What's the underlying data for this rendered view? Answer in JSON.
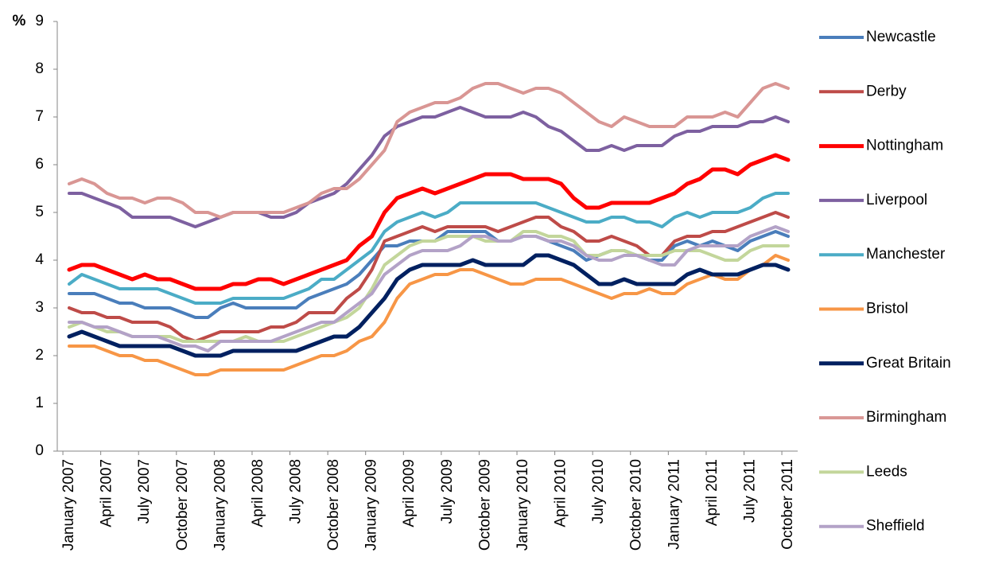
{
  "chart_data": {
    "type": "line",
    "y_label": "%",
    "categories": [
      "January 2007",
      null,
      null,
      "April 2007",
      null,
      null,
      "July 2007",
      null,
      null,
      "October 2007",
      null,
      null,
      "January 2008",
      null,
      null,
      "April 2008",
      null,
      null,
      "July 2008",
      null,
      null,
      "October 2008",
      null,
      null,
      "January 2009",
      null,
      null,
      "April 2009",
      null,
      null,
      "July 2009",
      null,
      null,
      "October 2009",
      null,
      null,
      "January 2010",
      null,
      null,
      "April 2010",
      null,
      null,
      "July 2010",
      null,
      null,
      "October 2010",
      null,
      null,
      "January 2011",
      null,
      null,
      "April 2011",
      null,
      null,
      "July 2011",
      null,
      null,
      "October 2011"
    ],
    "ylim": [
      0,
      9
    ],
    "yticks": [
      0,
      1,
      2,
      3,
      4,
      5,
      6,
      7,
      8,
      9
    ],
    "grid": false,
    "legend": "right",
    "series": [
      {
        "name": "Newcastle",
        "color": "#4a7ebb",
        "values": [
          3.3,
          3.3,
          3.3,
          3.2,
          3.1,
          3.1,
          3.0,
          3.0,
          3.0,
          2.9,
          2.8,
          2.8,
          3.0,
          3.1,
          3.0,
          3.0,
          3.0,
          3.0,
          3.0,
          3.2,
          3.3,
          3.4,
          3.5,
          3.7,
          4.0,
          4.3,
          4.3,
          4.4,
          4.4,
          4.4,
          4.6,
          4.6,
          4.6,
          4.6,
          4.4,
          4.4,
          4.5,
          4.5,
          4.4,
          4.3,
          4.2,
          4.0,
          4.1,
          4.2,
          4.2,
          4.1,
          4.0,
          4.0,
          4.3,
          4.4,
          4.3,
          4.4,
          4.3,
          4.2,
          4.4,
          4.5,
          4.6,
          4.5
        ]
      },
      {
        "name": "Derby",
        "color": "#be4b48",
        "values": [
          3.0,
          2.9,
          2.9,
          2.8,
          2.8,
          2.7,
          2.7,
          2.7,
          2.6,
          2.4,
          2.3,
          2.4,
          2.5,
          2.5,
          2.5,
          2.5,
          2.6,
          2.6,
          2.7,
          2.9,
          2.9,
          2.9,
          3.2,
          3.4,
          3.8,
          4.4,
          4.5,
          4.6,
          4.7,
          4.6,
          4.7,
          4.7,
          4.7,
          4.7,
          4.6,
          4.7,
          4.8,
          4.9,
          4.9,
          4.7,
          4.6,
          4.4,
          4.4,
          4.5,
          4.4,
          4.3,
          4.1,
          4.1,
          4.4,
          4.5,
          4.5,
          4.6,
          4.6,
          4.7,
          4.8,
          4.9,
          5.0,
          4.9
        ]
      },
      {
        "name": "Nottingham",
        "color": "#ff0000",
        "values": [
          3.8,
          3.9,
          3.9,
          3.8,
          3.7,
          3.6,
          3.7,
          3.6,
          3.6,
          3.5,
          3.4,
          3.4,
          3.4,
          3.5,
          3.5,
          3.6,
          3.6,
          3.5,
          3.6,
          3.7,
          3.8,
          3.9,
          4.0,
          4.3,
          4.5,
          5.0,
          5.3,
          5.4,
          5.5,
          5.4,
          5.5,
          5.6,
          5.7,
          5.8,
          5.8,
          5.8,
          5.7,
          5.7,
          5.7,
          5.6,
          5.3,
          5.1,
          5.1,
          5.2,
          5.2,
          5.2,
          5.2,
          5.3,
          5.4,
          5.6,
          5.7,
          5.9,
          5.9,
          5.8,
          6.0,
          6.1,
          6.2,
          6.1
        ]
      },
      {
        "name": "Liverpool",
        "color": "#7d60a0",
        "values": [
          5.4,
          5.4,
          5.3,
          5.2,
          5.1,
          4.9,
          4.9,
          4.9,
          4.9,
          4.8,
          4.7,
          4.8,
          4.9,
          5.0,
          5.0,
          5.0,
          4.9,
          4.9,
          5.0,
          5.2,
          5.3,
          5.4,
          5.6,
          5.9,
          6.2,
          6.6,
          6.8,
          6.9,
          7.0,
          7.0,
          7.1,
          7.2,
          7.1,
          7.0,
          7.0,
          7.0,
          7.1,
          7.0,
          6.8,
          6.7,
          6.5,
          6.3,
          6.3,
          6.4,
          6.3,
          6.4,
          6.4,
          6.4,
          6.6,
          6.7,
          6.7,
          6.8,
          6.8,
          6.8,
          6.9,
          6.9,
          7.0,
          6.9
        ]
      },
      {
        "name": "Manchester",
        "color": "#4bacc6",
        "values": [
          3.5,
          3.7,
          3.6,
          3.5,
          3.4,
          3.4,
          3.4,
          3.4,
          3.3,
          3.2,
          3.1,
          3.1,
          3.1,
          3.2,
          3.2,
          3.2,
          3.2,
          3.2,
          3.3,
          3.4,
          3.6,
          3.6,
          3.8,
          4.0,
          4.2,
          4.6,
          4.8,
          4.9,
          5.0,
          4.9,
          5.0,
          5.2,
          5.2,
          5.2,
          5.2,
          5.2,
          5.2,
          5.2,
          5.1,
          5.0,
          4.9,
          4.8,
          4.8,
          4.9,
          4.9,
          4.8,
          4.8,
          4.7,
          4.9,
          5.0,
          4.9,
          5.0,
          5.0,
          5.0,
          5.1,
          5.3,
          5.4,
          5.4
        ]
      },
      {
        "name": "Bristol",
        "color": "#f79646",
        "values": [
          2.2,
          2.2,
          2.2,
          2.1,
          2.0,
          2.0,
          1.9,
          1.9,
          1.8,
          1.7,
          1.6,
          1.6,
          1.7,
          1.7,
          1.7,
          1.7,
          1.7,
          1.7,
          1.8,
          1.9,
          2.0,
          2.0,
          2.1,
          2.3,
          2.4,
          2.7,
          3.2,
          3.5,
          3.6,
          3.7,
          3.7,
          3.8,
          3.8,
          3.7,
          3.6,
          3.5,
          3.5,
          3.6,
          3.6,
          3.6,
          3.5,
          3.4,
          3.3,
          3.2,
          3.3,
          3.3,
          3.4,
          3.3,
          3.3,
          3.5,
          3.6,
          3.7,
          3.6,
          3.6,
          3.8,
          3.9,
          4.1,
          4.0
        ]
      },
      {
        "name": "Great Britain",
        "color": "#002060",
        "values": [
          2.4,
          2.5,
          2.4,
          2.3,
          2.2,
          2.2,
          2.2,
          2.2,
          2.2,
          2.1,
          2.0,
          2.0,
          2.0,
          2.1,
          2.1,
          2.1,
          2.1,
          2.1,
          2.1,
          2.2,
          2.3,
          2.4,
          2.4,
          2.6,
          2.9,
          3.2,
          3.6,
          3.8,
          3.9,
          3.9,
          3.9,
          3.9,
          4.0,
          3.9,
          3.9,
          3.9,
          3.9,
          4.1,
          4.1,
          4.0,
          3.9,
          3.7,
          3.5,
          3.5,
          3.6,
          3.5,
          3.5,
          3.5,
          3.5,
          3.7,
          3.8,
          3.7,
          3.7,
          3.7,
          3.8,
          3.9,
          3.9,
          3.8
        ]
      },
      {
        "name": "Birmingham",
        "color": "#d99694",
        "values": [
          5.6,
          5.7,
          5.6,
          5.4,
          5.3,
          5.3,
          5.2,
          5.3,
          5.3,
          5.2,
          5.0,
          5.0,
          4.9,
          5.0,
          5.0,
          5.0,
          5.0,
          5.0,
          5.1,
          5.2,
          5.4,
          5.5,
          5.5,
          5.7,
          6.0,
          6.3,
          6.9,
          7.1,
          7.2,
          7.3,
          7.3,
          7.4,
          7.6,
          7.7,
          7.7,
          7.6,
          7.5,
          7.6,
          7.6,
          7.5,
          7.3,
          7.1,
          6.9,
          6.8,
          7.0,
          6.9,
          6.8,
          6.8,
          6.8,
          7.0,
          7.0,
          7.0,
          7.1,
          7.0,
          7.3,
          7.6,
          7.7,
          7.6
        ]
      },
      {
        "name": "Leeds",
        "color": "#c3d69b",
        "values": [
          2.6,
          2.7,
          2.6,
          2.5,
          2.5,
          2.4,
          2.4,
          2.4,
          2.4,
          2.3,
          2.3,
          2.3,
          2.3,
          2.3,
          2.4,
          2.3,
          2.3,
          2.3,
          2.4,
          2.5,
          2.6,
          2.7,
          2.8,
          3.0,
          3.4,
          3.9,
          4.1,
          4.3,
          4.4,
          4.4,
          4.5,
          4.5,
          4.5,
          4.4,
          4.4,
          4.4,
          4.6,
          4.6,
          4.5,
          4.5,
          4.4,
          4.1,
          4.1,
          4.2,
          4.2,
          4.1,
          4.1,
          4.1,
          4.2,
          4.2,
          4.2,
          4.1,
          4.0,
          4.0,
          4.2,
          4.3,
          4.3,
          4.3
        ]
      },
      {
        "name": "Sheffield",
        "color": "#b3a2c7",
        "values": [
          2.7,
          2.7,
          2.6,
          2.6,
          2.5,
          2.4,
          2.4,
          2.4,
          2.3,
          2.2,
          2.2,
          2.1,
          2.3,
          2.3,
          2.3,
          2.3,
          2.3,
          2.4,
          2.5,
          2.6,
          2.7,
          2.7,
          2.9,
          3.1,
          3.3,
          3.7,
          3.9,
          4.1,
          4.2,
          4.2,
          4.2,
          4.3,
          4.5,
          4.5,
          4.4,
          4.4,
          4.5,
          4.5,
          4.4,
          4.4,
          4.3,
          4.1,
          4.0,
          4.0,
          4.1,
          4.1,
          4.0,
          3.9,
          3.9,
          4.2,
          4.3,
          4.3,
          4.3,
          4.3,
          4.5,
          4.6,
          4.7,
          4.6
        ]
      }
    ]
  }
}
